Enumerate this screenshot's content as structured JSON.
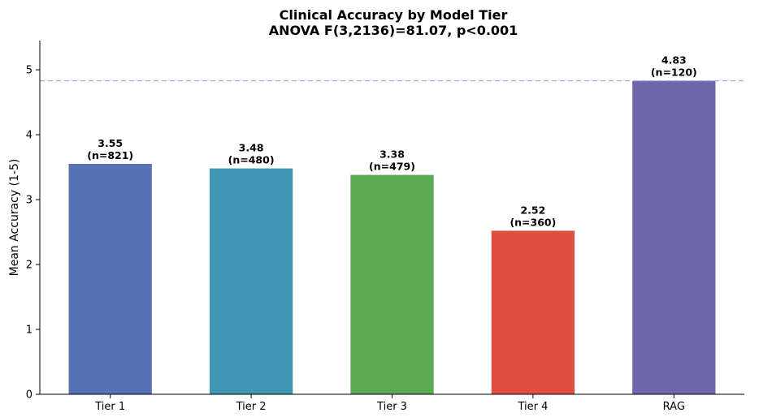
{
  "chart_data": {
    "type": "bar",
    "title": "Clinical Accuracy by Model Tier",
    "subtitle": "ANOVA F(3,2136)=81.07, p<0.001",
    "xlabel": "",
    "ylabel": "Mean Accuracy (1-5)",
    "ylim": [
      0,
      5.45
    ],
    "yticks": [
      0,
      1,
      2,
      3,
      4,
      5
    ],
    "categories": [
      "Tier 1",
      "Tier 2",
      "Tier 3",
      "Tier 4",
      "RAG"
    ],
    "values": [
      3.55,
      3.48,
      3.38,
      2.52,
      4.83
    ],
    "value_labels": [
      "3.55",
      "3.48",
      "3.38",
      "2.52",
      "4.83"
    ],
    "n_labels": [
      "(n=821)",
      "(n=480)",
      "(n=479)",
      "(n=360)",
      "(n=120)"
    ],
    "colors": [
      "#5472b4",
      "#3f97b4",
      "#5ca854",
      "#de4e42",
      "#6e67ad"
    ],
    "reference_line": {
      "value": 4.83,
      "style": "dashed",
      "color": "#aaaaf0"
    },
    "grid": false,
    "legend": "none"
  }
}
